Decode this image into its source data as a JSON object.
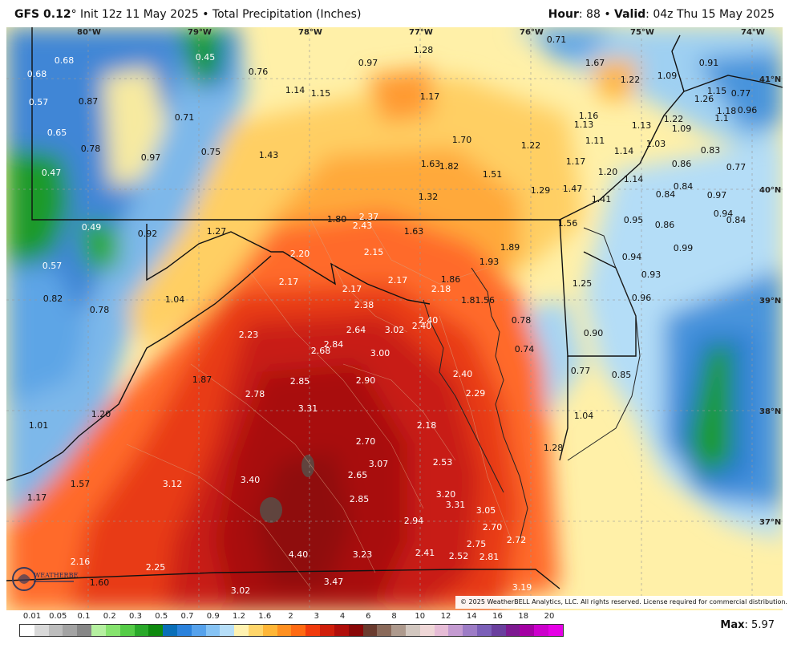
{
  "header": {
    "model": "GFS 0.12",
    "degree": "°",
    "init": " Init 12z 11 May 2025",
    "sep": " • ",
    "product": "Total Precipitation (Inches)",
    "hour_label": "Hour",
    "hour_value": ": 88 • ",
    "valid_label": "Valid",
    "valid_value": ": 04z Thu 15 May 2025"
  },
  "map": {
    "lon_labels": [
      "80°W",
      "79°W",
      "78°W",
      "77°W",
      "76°W",
      "75°W",
      "74°W"
    ],
    "lat_labels": [
      "41°N",
      "40°N",
      "39°N",
      "38°N",
      "37°N"
    ],
    "values": [
      {
        "t": "0.68"
      },
      {
        "t": "0.45"
      },
      {
        "t": "0.68"
      },
      {
        "t": "0.57"
      },
      {
        "t": "0.87"
      },
      {
        "t": "0.76"
      },
      {
        "t": "0.97"
      },
      {
        "t": "1.28"
      },
      {
        "t": "0.71"
      },
      {
        "t": "1.67"
      },
      {
        "t": "1.00"
      },
      {
        "t": "0.91"
      },
      {
        "t": "1.22"
      },
      {
        "t": "1.09"
      },
      {
        "t": "0.77"
      },
      {
        "t": "1.14"
      },
      {
        "t": "1.15"
      },
      {
        "t": "1.17"
      },
      {
        "t": "1.26"
      },
      {
        "t": "1.15"
      },
      {
        "t": "0.71"
      },
      {
        "t": "0.65"
      },
      {
        "t": "1.16"
      },
      {
        "t": "1.13"
      },
      {
        "t": "1.13"
      },
      {
        "t": "1.22"
      },
      {
        "t": "1.09"
      },
      {
        "t": "1.18"
      },
      {
        "t": "0.96"
      },
      {
        "t": "1.1"
      },
      {
        "t": "0.78"
      },
      {
        "t": "0.97"
      },
      {
        "t": "0.75"
      },
      {
        "t": "1.43"
      },
      {
        "t": "1.70"
      },
      {
        "t": "1.22"
      },
      {
        "t": "1.11"
      },
      {
        "t": "1.03"
      },
      {
        "t": "1.14"
      },
      {
        "t": "0.83"
      },
      {
        "t": "0.47"
      },
      {
        "t": "1.63"
      },
      {
        "t": "1.82"
      },
      {
        "t": "1.51"
      },
      {
        "t": "1.17"
      },
      {
        "t": "1.20"
      },
      {
        "t": "0.86"
      },
      {
        "t": "0.77"
      },
      {
        "t": "1.32"
      },
      {
        "t": "1.29"
      },
      {
        "t": "1.47"
      },
      {
        "t": "1.14"
      },
      {
        "t": "0.84"
      },
      {
        "t": "0.84"
      },
      {
        "t": "0.97"
      },
      {
        "t": "1.41"
      },
      {
        "t": "0.94"
      },
      {
        "t": "0.84"
      },
      {
        "t": "1.80"
      },
      {
        "t": "2.37"
      },
      {
        "t": "2.43"
      },
      {
        "t": "1.63"
      },
      {
        "t": "1.56"
      },
      {
        "t": "0.95"
      },
      {
        "t": "0.86"
      },
      {
        "t": "0.49"
      },
      {
        "t": "0.92"
      },
      {
        "t": "1.27"
      },
      {
        "t": "2.20"
      },
      {
        "t": "2.15"
      },
      {
        "t": "1.89"
      },
      {
        "t": "1.93"
      },
      {
        "t": "0.99"
      },
      {
        "t": "0.94"
      },
      {
        "t": "0.57"
      },
      {
        "t": "2.17"
      },
      {
        "t": "2.17"
      },
      {
        "t": "1.86"
      },
      {
        "t": "1.25"
      },
      {
        "t": "0.93"
      },
      {
        "t": "2.17"
      },
      {
        "t": "2.18"
      },
      {
        "t": "0.82"
      },
      {
        "t": "1.04"
      },
      {
        "t": "2.38"
      },
      {
        "t": "1.81.56"
      },
      {
        "t": "0.96"
      },
      {
        "t": "0.78"
      },
      {
        "t": "2.40"
      },
      {
        "t": "0.78"
      },
      {
        "t": "2.64"
      },
      {
        "t": "3.02"
      },
      {
        "t": "2.40"
      },
      {
        "t": "0.90"
      },
      {
        "t": "2.23"
      },
      {
        "t": "2.84"
      },
      {
        "t": "2.68"
      },
      {
        "t": "3.00"
      },
      {
        "t": "0.74"
      },
      {
        "t": "2.40"
      },
      {
        "t": "0.77"
      },
      {
        "t": "0.85"
      },
      {
        "t": "1.87"
      },
      {
        "t": "2.85"
      },
      {
        "t": "2.90"
      },
      {
        "t": "2.29"
      },
      {
        "t": "2.78"
      },
      {
        "t": "1.04"
      },
      {
        "t": "3.31"
      },
      {
        "t": "1.20"
      },
      {
        "t": "1.01"
      },
      {
        "t": "2.18"
      },
      {
        "t": "2.70"
      },
      {
        "t": "1.28"
      },
      {
        "t": "3.07"
      },
      {
        "t": "2.53"
      },
      {
        "t": "1.57"
      },
      {
        "t": "3.12"
      },
      {
        "t": "3.40"
      },
      {
        "t": "2.65"
      },
      {
        "t": "1.17"
      },
      {
        "t": "2.85"
      },
      {
        "t": "3.20"
      },
      {
        "t": "3.31"
      },
      {
        "t": "3.05"
      },
      {
        "t": "2.94"
      },
      {
        "t": "2.70"
      },
      {
        "t": "2.75"
      },
      {
        "t": "2.72"
      },
      {
        "t": "4.40"
      },
      {
        "t": "3.23"
      },
      {
        "t": "2.41"
      },
      {
        "t": "2.52"
      },
      {
        "t": "2.81"
      },
      {
        "t": "2.16"
      },
      {
        "t": "2.25"
      },
      {
        "t": "1.60"
      },
      {
        "t": "3.47"
      },
      {
        "t": "3.02"
      },
      {
        "t": "3.19"
      }
    ]
  },
  "credit": "© 2025 WeatherBELL Analytics, LLC. All rights reserved. License required for commercial distribution.",
  "logo_text": "WEATHERBELL",
  "colorbar": {
    "ticks": [
      "0.01",
      "0.05",
      "0.1",
      "0.2",
      "0.3",
      "0.5",
      "0.7",
      "0.9",
      "1.2",
      "1.6",
      "2",
      "3",
      "4",
      "6",
      "8",
      "10",
      "12",
      "14",
      "16",
      "18",
      "20"
    ],
    "colors": [
      "#ffffff",
      "#d9d9d9",
      "#bdbdbd",
      "#a3a3a3",
      "#878787",
      "#b5f0a0",
      "#86e36e",
      "#55cc47",
      "#2aa92a",
      "#0f8a0f",
      "#0a6fb8",
      "#2b82dc",
      "#56a2ec",
      "#86c3f4",
      "#b6def8",
      "#fff2b0",
      "#ffd66b",
      "#ffb636",
      "#ff9020",
      "#ff6a12",
      "#f03a0c",
      "#d01e0a",
      "#b00e0a",
      "#8a0808",
      "#6a3b2e",
      "#8a6a5a",
      "#ae9a8d",
      "#d2c7bf",
      "#efd7d7",
      "#e6bcd6",
      "#c49bd1",
      "#9d7cc6",
      "#7b5fb8",
      "#6a3f9e",
      "#7d1a91",
      "#a300a3",
      "#cc00cc",
      "#e600e6"
    ],
    "max_label": "Max",
    "max_value": ": 5.97"
  }
}
